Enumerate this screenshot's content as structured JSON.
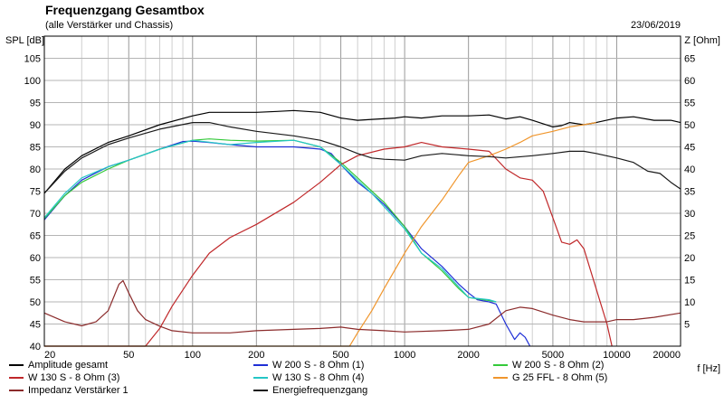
{
  "header": {
    "title": "Frequenzgang Gesamtbox",
    "subtitle": "(alle Verstärker und Chassis)",
    "date": "23/06/2019"
  },
  "chart_data": {
    "type": "line",
    "title": "Frequenzgang Gesamtbox",
    "subtitle": "(alle Verstärker und Chassis)",
    "xlabel": "f [Hz]",
    "ylabel": "SPL [dB]",
    "y2label": "Z [Ohm]",
    "xscale": "log",
    "xlim": [
      20,
      20000
    ],
    "ylim": [
      40,
      110
    ],
    "y2lim": [
      0,
      70
    ],
    "grid": true,
    "legend_position": "bottom",
    "xticks": [
      20,
      50,
      100,
      200,
      500,
      1000,
      2000,
      5000,
      10000,
      20000
    ],
    "xtick_labels": [
      "20",
      "50",
      "100",
      "200",
      "500",
      "1000",
      "2000",
      "5000",
      "10000",
      "20000"
    ],
    "yticks": [
      40,
      45,
      50,
      55,
      60,
      65,
      70,
      75,
      80,
      85,
      90,
      95,
      100,
      105
    ],
    "y2ticks": [
      5,
      10,
      15,
      20,
      25,
      30,
      35,
      40,
      45,
      50,
      55,
      60,
      65
    ],
    "series": [
      {
        "name": "Amplitude gesamt",
        "color": "#000000",
        "axis": "left",
        "points": [
          [
            20,
            74.5
          ],
          [
            25,
            80
          ],
          [
            30,
            83
          ],
          [
            40,
            86
          ],
          [
            50,
            87.5
          ],
          [
            70,
            90
          ],
          [
            100,
            92
          ],
          [
            120,
            92.8
          ],
          [
            150,
            92.8
          ],
          [
            200,
            92.8
          ],
          [
            250,
            93
          ],
          [
            300,
            93.2
          ],
          [
            400,
            92.8
          ],
          [
            500,
            91.5
          ],
          [
            600,
            91
          ],
          [
            700,
            91.2
          ],
          [
            900,
            91.5
          ],
          [
            1000,
            91.8
          ],
          [
            1200,
            91.5
          ],
          [
            1500,
            92
          ],
          [
            2000,
            92
          ],
          [
            2500,
            92.2
          ],
          [
            3000,
            91.3
          ],
          [
            3500,
            91.8
          ],
          [
            4000,
            91
          ],
          [
            5000,
            89.5
          ],
          [
            5500,
            89.8
          ],
          [
            6000,
            90.5
          ],
          [
            7000,
            90
          ],
          [
            8000,
            90.5
          ],
          [
            10000,
            91.5
          ],
          [
            12000,
            91.8
          ],
          [
            15000,
            91
          ],
          [
            18000,
            91
          ],
          [
            20000,
            90.5
          ]
        ]
      },
      {
        "name": "W 200 S - 8 Ohm (1)",
        "color": "#1f2fd6",
        "axis": "left",
        "points": [
          [
            20,
            68.5
          ],
          [
            25,
            74
          ],
          [
            30,
            77.5
          ],
          [
            40,
            80.5
          ],
          [
            50,
            82
          ],
          [
            70,
            84.5
          ],
          [
            90,
            86.2
          ],
          [
            100,
            86.3
          ],
          [
            120,
            86
          ],
          [
            150,
            85.5
          ],
          [
            200,
            85
          ],
          [
            300,
            85
          ],
          [
            400,
            84.5
          ],
          [
            450,
            83.5
          ],
          [
            500,
            81
          ],
          [
            600,
            77
          ],
          [
            700,
            74.5
          ],
          [
            800,
            72
          ],
          [
            1000,
            67
          ],
          [
            1200,
            62
          ],
          [
            1500,
            58
          ],
          [
            1800,
            54
          ],
          [
            2000,
            52
          ],
          [
            2200,
            50.5
          ],
          [
            2500,
            50
          ],
          [
            2700,
            49.5
          ],
          [
            3000,
            45
          ],
          [
            3300,
            41.5
          ],
          [
            3500,
            43
          ],
          [
            3700,
            42
          ],
          [
            3900,
            40
          ]
        ]
      },
      {
        "name": "W 200 S - 8 Ohm (2)",
        "color": "#34c93a",
        "axis": "left",
        "points": [
          [
            20,
            68.8
          ],
          [
            25,
            74
          ],
          [
            30,
            77
          ],
          [
            40,
            80
          ],
          [
            50,
            82
          ],
          [
            70,
            84.5
          ],
          [
            100,
            86.5
          ],
          [
            120,
            86.8
          ],
          [
            150,
            86.5
          ],
          [
            200,
            86.3
          ],
          [
            300,
            86.5
          ],
          [
            400,
            85
          ],
          [
            500,
            81.5
          ],
          [
            600,
            78
          ],
          [
            700,
            75
          ],
          [
            800,
            72.5
          ],
          [
            1000,
            67
          ],
          [
            1200,
            61
          ],
          [
            1500,
            57
          ],
          [
            1800,
            53
          ],
          [
            2000,
            51
          ],
          [
            2500,
            50.3
          ],
          [
            2700,
            50
          ]
        ]
      },
      {
        "name": "W 130 S - 8 Ohm (3)",
        "color": "#c0282a",
        "axis": "left",
        "points": [
          [
            20,
            40
          ],
          [
            60,
            40
          ],
          [
            70,
            44
          ],
          [
            80,
            49
          ],
          [
            100,
            56
          ],
          [
            120,
            61
          ],
          [
            150,
            64.5
          ],
          [
            200,
            67.5
          ],
          [
            300,
            72.5
          ],
          [
            400,
            77
          ],
          [
            500,
            81
          ],
          [
            600,
            83
          ],
          [
            800,
            84.5
          ],
          [
            1000,
            85
          ],
          [
            1200,
            86
          ],
          [
            1500,
            85
          ],
          [
            2000,
            84.5
          ],
          [
            2500,
            84
          ],
          [
            3000,
            80
          ],
          [
            3500,
            78
          ],
          [
            4000,
            77.5
          ],
          [
            4500,
            75
          ],
          [
            5000,
            69
          ],
          [
            5500,
            63.5
          ],
          [
            6000,
            63
          ],
          [
            6500,
            64
          ],
          [
            7000,
            62
          ],
          [
            8000,
            53
          ],
          [
            9000,
            45
          ],
          [
            9500,
            40
          ]
        ]
      },
      {
        "name": "W 130 S - 8 Ohm (4)",
        "color": "#25c6c6",
        "axis": "left",
        "points": [
          [
            20,
            69
          ],
          [
            25,
            74.5
          ],
          [
            30,
            78
          ],
          [
            40,
            80.5
          ],
          [
            50,
            82
          ],
          [
            70,
            84.5
          ],
          [
            100,
            86.5
          ],
          [
            150,
            85.5
          ],
          [
            200,
            86
          ],
          [
            300,
            86.5
          ],
          [
            400,
            85
          ],
          [
            500,
            81
          ],
          [
            700,
            74.5
          ],
          [
            1000,
            66.5
          ],
          [
            1200,
            61
          ],
          [
            1500,
            57.5
          ],
          [
            2000,
            51
          ],
          [
            2500,
            50.5
          ],
          [
            2700,
            50
          ]
        ]
      },
      {
        "name": "G 25 FFL - 8 Ohm (5)",
        "color": "#f0962d",
        "axis": "left",
        "points": [
          [
            20,
            40
          ],
          [
            550,
            40
          ],
          [
            600,
            43
          ],
          [
            700,
            48
          ],
          [
            800,
            53
          ],
          [
            1000,
            61
          ],
          [
            1200,
            67
          ],
          [
            1500,
            73
          ],
          [
            1800,
            78.5
          ],
          [
            2000,
            81.5
          ],
          [
            2500,
            83
          ],
          [
            3000,
            84.5
          ],
          [
            3500,
            86
          ],
          [
            4000,
            87.5
          ],
          [
            5000,
            88.5
          ],
          [
            6000,
            89.5
          ],
          [
            7000,
            90
          ],
          [
            8000,
            90.5
          ]
        ]
      },
      {
        "name": "Impedanz Verstärker 1",
        "color": "#8b2b2b",
        "axis": "right",
        "points": [
          [
            20,
            7.5
          ],
          [
            25,
            5.5
          ],
          [
            30,
            4.6
          ],
          [
            35,
            5.5
          ],
          [
            40,
            8
          ],
          [
            45,
            14
          ],
          [
            47,
            14.8
          ],
          [
            50,
            12
          ],
          [
            55,
            8
          ],
          [
            60,
            6
          ],
          [
            70,
            4.5
          ],
          [
            80,
            3.5
          ],
          [
            100,
            3
          ],
          [
            150,
            3
          ],
          [
            200,
            3.5
          ],
          [
            300,
            3.8
          ],
          [
            400,
            4
          ],
          [
            500,
            4.3
          ],
          [
            600,
            3.8
          ],
          [
            800,
            3.5
          ],
          [
            1000,
            3.2
          ],
          [
            1500,
            3.5
          ],
          [
            2000,
            3.8
          ],
          [
            2500,
            5
          ],
          [
            3000,
            8
          ],
          [
            3500,
            8.8
          ],
          [
            4000,
            8.5
          ],
          [
            5000,
            7
          ],
          [
            6000,
            6
          ],
          [
            7000,
            5.5
          ],
          [
            9000,
            5.5
          ],
          [
            10000,
            6
          ],
          [
            12000,
            6
          ],
          [
            15000,
            6.5
          ],
          [
            20000,
            7.5
          ]
        ]
      },
      {
        "name": "Energiefrequenzgang",
        "color": "#1a1a1a",
        "axis": "left",
        "points": [
          [
            20,
            74.5
          ],
          [
            25,
            79.5
          ],
          [
            30,
            82.5
          ],
          [
            40,
            85.5
          ],
          [
            50,
            87
          ],
          [
            70,
            89
          ],
          [
            100,
            90.5
          ],
          [
            120,
            90.5
          ],
          [
            150,
            89.5
          ],
          [
            200,
            88.5
          ],
          [
            300,
            87.5
          ],
          [
            400,
            86.5
          ],
          [
            500,
            85
          ],
          [
            600,
            83.5
          ],
          [
            700,
            82.5
          ],
          [
            800,
            82.2
          ],
          [
            1000,
            82
          ],
          [
            1200,
            83
          ],
          [
            1500,
            83.5
          ],
          [
            2000,
            83
          ],
          [
            2500,
            82.8
          ],
          [
            3000,
            82.5
          ],
          [
            4000,
            83
          ],
          [
            5000,
            83.5
          ],
          [
            6000,
            84
          ],
          [
            7000,
            84
          ],
          [
            8000,
            83.5
          ],
          [
            10000,
            82.5
          ],
          [
            12000,
            81.5
          ],
          [
            14000,
            79.5
          ],
          [
            16000,
            79
          ],
          [
            18000,
            77
          ],
          [
            20000,
            75.5
          ]
        ]
      }
    ]
  },
  "legend": [
    {
      "label": "Amplitude gesamt",
      "color": "#000000"
    },
    {
      "label": "W 200 S - 8 Ohm (1)",
      "color": "#1f2fd6"
    },
    {
      "label": "W 200 S - 8 Ohm (2)",
      "color": "#34c93a"
    },
    {
      "label": "W 130 S - 8 Ohm (3)",
      "color": "#c0282a"
    },
    {
      "label": "W 130 S - 8 Ohm (4)",
      "color": "#25c6c6"
    },
    {
      "label": "G 25 FFL - 8 Ohm (5)",
      "color": "#f0962d"
    },
    {
      "label": "Impedanz Verstärker 1",
      "color": "#8b2b2b"
    },
    {
      "label": "Energiefrequenzgang",
      "color": "#1a1a1a"
    }
  ]
}
